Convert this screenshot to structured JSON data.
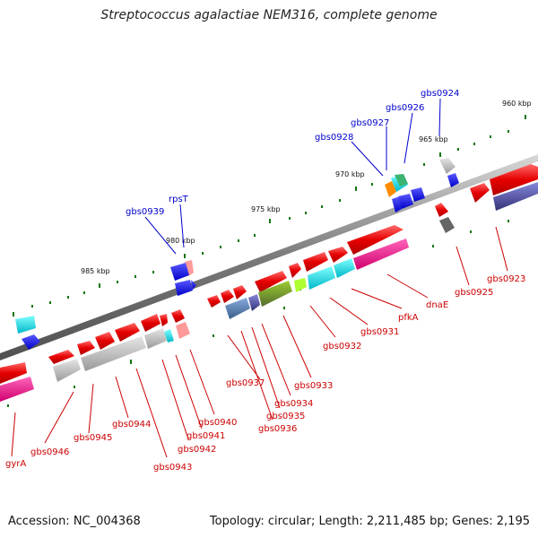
{
  "title": "Streptococcus agalactiae NEM316, complete genome",
  "footer": {
    "accession": "Accession: NC_004368",
    "summary": "Topology: circular; Length: 2,211,485 bp; Genes: 2,195"
  },
  "ticks": [
    "960 kbp",
    "965 kbp",
    "970 kbp",
    "975 kbp",
    "980 kbp",
    "985 kbp"
  ],
  "labels_top": [
    "gbs0924",
    "gbs0926",
    "gbs0927",
    "gbs0928",
    "rpsT",
    "gbs0939"
  ],
  "labels_bottom": [
    "gbs0923",
    "gbs0925",
    "dnaE",
    "pfkA",
    "gbs0931",
    "gbs0932",
    "gbs0933",
    "gbs0934",
    "gbs0935",
    "gbs0936",
    "gbs0937",
    "gbs0940",
    "gbs0941",
    "gbs0942",
    "gbs0943",
    "gbs0944",
    "gbs0945",
    "gbs0946",
    "gyrA"
  ],
  "colors": {
    "backbone": "#888888",
    "forward_gene": "#ee0000",
    "reverse_gene": "#0000ee",
    "label_bottom": "#cc0000",
    "label_top": "#0000cc",
    "tick": "#007700"
  }
}
